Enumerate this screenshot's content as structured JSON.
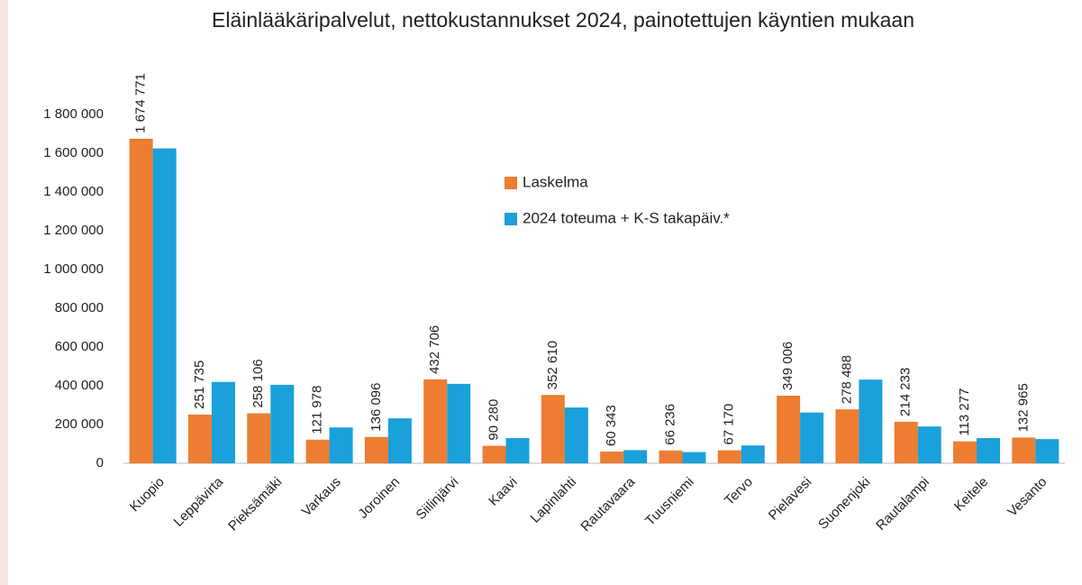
{
  "chart_data": {
    "type": "bar",
    "title": "Eläinlääkäripalvelut, nettokustannukset 2024, painotettujen käyntien mukaan",
    "categories": [
      "Kuopio",
      "Leppävirta",
      "Pieksämäki",
      "Varkaus",
      "Joroinen",
      "Siilinjärvi",
      "Kaavi",
      "Lapinlahti",
      "Rautavaara",
      "Tuusniemi",
      "Tervo",
      "Pielavesi",
      "Suonenjoki",
      "Rautalampi",
      "Keitele",
      "Vesanto"
    ],
    "series": [
      {
        "name": "Laskelma",
        "color": "#ed7d31",
        "values": [
          1674771,
          251735,
          258106,
          121978,
          136096,
          432706,
          90280,
          352610,
          60343,
          66236,
          67170,
          349006,
          278488,
          214233,
          113277,
          132965
        ],
        "value_labels": [
          "1 674 771",
          "251 735",
          "258 106",
          "121 978",
          "136 096",
          "432 706",
          "90 280",
          "352 610",
          "60 343",
          "66 236",
          "67 170",
          "349 006",
          "278 488",
          "214 233",
          "113 277",
          "132 965"
        ]
      },
      {
        "name": "2024 toteuma + K-S takapäiv.*",
        "color": "#1aa0da",
        "values": [
          1625000,
          420000,
          405000,
          185000,
          232000,
          410000,
          130000,
          288000,
          68000,
          58000,
          92000,
          262000,
          432000,
          190000,
          130000,
          125000
        ]
      }
    ],
    "ylim": [
      0,
      1800000
    ],
    "yticks": [
      0,
      {
        "value": 200000,
        "label": "200 000"
      },
      {
        "value": 400000,
        "label": "400 000"
      },
      {
        "value": 600000,
        "label": "600 000"
      },
      {
        "value": 800000,
        "label": "800 000"
      },
      {
        "value": 1000000,
        "label": "1 000 000"
      },
      {
        "value": 1200000,
        "label": "1 200 000"
      },
      {
        "value": 1400000,
        "label": "1 400 000"
      },
      {
        "value": 1600000,
        "label": "1 600 000"
      },
      {
        "value": 1800000,
        "label": "1 800 000"
      }
    ],
    "grid": false
  }
}
